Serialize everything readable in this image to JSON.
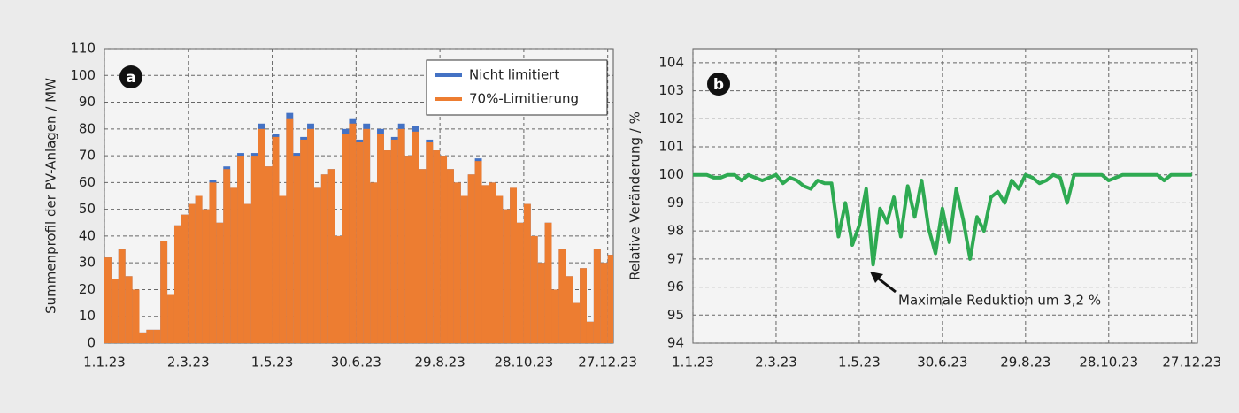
{
  "chart_data": [
    {
      "type": "bar",
      "badge": "a",
      "y_label": "Summenprofil der PV-Anlagen / MW",
      "x": [
        "1.1.23",
        "6.1.23",
        "11.1.23",
        "16.1.23",
        "21.1.23",
        "26.1.23",
        "31.1.23",
        "5.2.23",
        "10.2.23",
        "15.2.23",
        "20.2.23",
        "25.2.23",
        "2.3.23",
        "7.3.23",
        "12.3.23",
        "17.3.23",
        "22.3.23",
        "27.3.23",
        "1.4.23",
        "6.4.23",
        "11.4.23",
        "16.4.23",
        "21.4.23",
        "26.4.23",
        "1.5.23",
        "6.5.23",
        "11.5.23",
        "16.5.23",
        "21.5.23",
        "26.5.23",
        "31.5.23",
        "5.6.23",
        "10.6.23",
        "15.6.23",
        "20.6.23",
        "25.6.23",
        "30.6.23",
        "5.7.23",
        "10.7.23",
        "15.7.23",
        "20.7.23",
        "25.7.23",
        "30.7.23",
        "4.8.23",
        "9.8.23",
        "14.8.23",
        "19.8.23",
        "24.8.23",
        "29.8.23",
        "3.9.23",
        "8.9.23",
        "13.9.23",
        "18.9.23",
        "23.9.23",
        "28.9.23",
        "3.10.23",
        "8.10.23",
        "13.10.23",
        "18.10.23",
        "23.10.23",
        "28.10.23",
        "2.11.23",
        "7.11.23",
        "12.11.23",
        "17.11.23",
        "22.11.23",
        "27.11.23",
        "2.12.23",
        "7.12.23",
        "12.12.23",
        "17.12.23",
        "22.12.23",
        "27.12.23"
      ],
      "series": [
        {
          "name": "Nicht limitiert",
          "color": "#4472c4",
          "values": [
            32,
            24,
            35,
            25,
            20,
            4,
            5,
            5,
            38,
            18,
            44,
            48,
            52,
            55,
            50,
            61,
            45,
            66,
            58,
            71,
            52,
            71,
            82,
            66,
            78,
            55,
            86,
            71,
            77,
            82,
            58,
            63,
            65,
            40,
            80,
            84,
            76,
            82,
            60,
            80,
            72,
            77,
            82,
            70,
            81,
            65,
            76,
            72,
            70,
            65,
            60,
            55,
            63,
            69,
            59,
            60,
            55,
            50,
            58,
            45,
            52,
            40,
            30,
            45,
            20,
            35,
            25,
            15,
            28,
            8,
            35,
            30,
            33
          ]
        },
        {
          "name": "70%-Limitierung",
          "color": "#ed7d31",
          "values": [
            32,
            24,
            35,
            25,
            20,
            4,
            5,
            5,
            38,
            18,
            44,
            48,
            52,
            55,
            50,
            60,
            45,
            65,
            58,
            70,
            52,
            70,
            80,
            66,
            77,
            55,
            84,
            70,
            76,
            80,
            58,
            63,
            65,
            40,
            78,
            82,
            75,
            80,
            60,
            78,
            72,
            76,
            80,
            70,
            79,
            65,
            75,
            72,
            70,
            65,
            60,
            55,
            63,
            68,
            59,
            60,
            55,
            50,
            58,
            45,
            52,
            40,
            30,
            45,
            20,
            35,
            25,
            15,
            28,
            8,
            35,
            30,
            33
          ]
        }
      ],
      "xlim": [
        "1.1.23",
        "31.12.23"
      ],
      "xticks": [
        "1.1.23",
        "2.3.23",
        "1.5.23",
        "30.6.23",
        "29.8.23",
        "28.10.23",
        "27.12.23"
      ],
      "ylim": [
        0,
        110
      ],
      "yticks": [
        0,
        10,
        20,
        30,
        40,
        50,
        60,
        70,
        80,
        90,
        100,
        110
      ],
      "grid": true,
      "legend": "top-right"
    },
    {
      "type": "line",
      "badge": "b",
      "y_label": "Relative Veränderung / %",
      "annotation": "Maximale Reduktion um 3,2 %",
      "x": [
        "1.1.23",
        "6.1.23",
        "11.1.23",
        "16.1.23",
        "21.1.23",
        "26.1.23",
        "31.1.23",
        "5.2.23",
        "10.2.23",
        "15.2.23",
        "20.2.23",
        "25.2.23",
        "2.3.23",
        "7.3.23",
        "12.3.23",
        "17.3.23",
        "22.3.23",
        "27.3.23",
        "1.4.23",
        "6.4.23",
        "11.4.23",
        "16.4.23",
        "21.4.23",
        "26.4.23",
        "1.5.23",
        "6.5.23",
        "11.5.23",
        "16.5.23",
        "21.5.23",
        "26.5.23",
        "31.5.23",
        "5.6.23",
        "10.6.23",
        "15.6.23",
        "20.6.23",
        "25.6.23",
        "30.6.23",
        "5.7.23",
        "10.7.23",
        "15.7.23",
        "20.7.23",
        "25.7.23",
        "30.7.23",
        "4.8.23",
        "9.8.23",
        "14.8.23",
        "19.8.23",
        "24.8.23",
        "29.8.23",
        "3.9.23",
        "8.9.23",
        "13.9.23",
        "18.9.23",
        "23.9.23",
        "28.9.23",
        "3.10.23",
        "8.10.23",
        "13.10.23",
        "18.10.23",
        "23.10.23",
        "28.10.23",
        "2.11.23",
        "7.11.23",
        "12.11.23",
        "17.11.23",
        "22.11.23",
        "27.11.23",
        "2.12.23",
        "7.12.23",
        "12.12.23",
        "17.12.23",
        "22.12.23",
        "27.12.23"
      ],
      "series": [
        {
          "name": "Relative Veränderung",
          "color": "#2eaa52",
          "values": [
            100,
            100,
            100,
            99.9,
            99.9,
            100,
            100,
            99.8,
            100,
            99.9,
            99.8,
            99.9,
            100,
            99.7,
            99.9,
            99.8,
            99.6,
            99.5,
            99.8,
            99.7,
            99.7,
            97.8,
            99,
            97.5,
            98.2,
            99.5,
            96.8,
            98.8,
            98.3,
            99.2,
            97.8,
            99.6,
            98.5,
            99.8,
            98.1,
            97.2,
            98.8,
            97.6,
            99.5,
            98.4,
            97,
            98.5,
            98,
            99.2,
            99.4,
            99,
            99.8,
            99.5,
            100,
            99.9,
            99.7,
            99.8,
            100,
            99.9,
            99,
            100,
            100,
            100,
            100,
            100,
            99.8,
            99.9,
            100,
            100,
            100,
            100,
            100,
            100,
            99.8,
            100,
            100,
            100,
            100
          ]
        }
      ],
      "xlim": [
        "1.1.23",
        "31.12.23"
      ],
      "xticks": [
        "1.1.23",
        "2.3.23",
        "1.5.23",
        "30.6.23",
        "29.8.23",
        "28.10.23",
        "27.12.23"
      ],
      "ylim": [
        94,
        104.5
      ],
      "yticks": [
        94,
        95,
        96,
        97,
        98,
        99,
        100,
        101,
        102,
        103,
        104
      ],
      "grid": true
    }
  ]
}
